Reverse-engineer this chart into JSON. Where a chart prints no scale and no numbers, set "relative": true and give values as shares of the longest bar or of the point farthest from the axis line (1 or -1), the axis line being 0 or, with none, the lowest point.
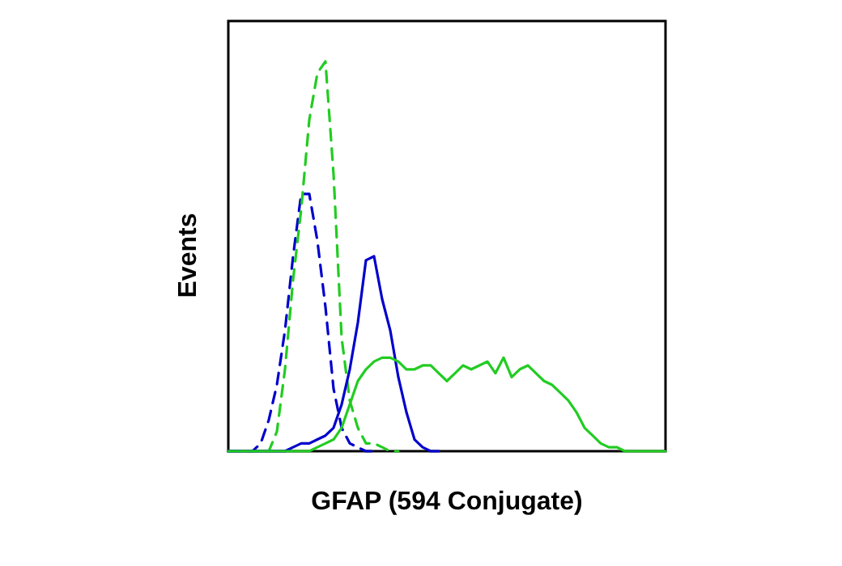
{
  "chart_data": {
    "type": "line",
    "relative": true,
    "xlabel": "GFAP (594 Conjugate)",
    "ylabel": "Events",
    "grid": false,
    "marker": "none",
    "categories": [
      null,
      null,
      null,
      null,
      null,
      null,
      null,
      null,
      null,
      null,
      null,
      null,
      null,
      null,
      null,
      null,
      null,
      null,
      null,
      null,
      null,
      null,
      null,
      null,
      null,
      null,
      null,
      null,
      null,
      null,
      null,
      null,
      null,
      null,
      null,
      null,
      null,
      null,
      null,
      null,
      null,
      null,
      null,
      null,
      null,
      null,
      null,
      null,
      null,
      null,
      null,
      null,
      null,
      null,
      null
    ],
    "series": [
      {
        "color": "#0000cc",
        "line_style": "dashed",
        "values": [
          0,
          0,
          0,
          0,
          0.02,
          0.08,
          0.17,
          0.31,
          0.5,
          0.66,
          0.66,
          0.54,
          0.37,
          0.16,
          0.06,
          0.02,
          0.01,
          0,
          0,
          null,
          null,
          null,
          null,
          null,
          null,
          null,
          null,
          null,
          null,
          null,
          null,
          null,
          null,
          null,
          null,
          null,
          null,
          null,
          null,
          null,
          null,
          null,
          null,
          null,
          null,
          null,
          null,
          null,
          null,
          null,
          null,
          null,
          null,
          null,
          null
        ]
      },
      {
        "color": "#22cc22",
        "line_style": "dashed",
        "values": [
          0,
          0,
          0,
          0,
          0,
          0,
          0.05,
          0.21,
          0.44,
          0.62,
          0.85,
          0.97,
          1,
          0.71,
          0.29,
          0.13,
          0.06,
          0.02,
          0.02,
          0.01,
          0,
          0,
          null,
          null,
          null,
          null,
          null,
          null,
          null,
          null,
          null,
          null,
          null,
          null,
          null,
          null,
          null,
          null,
          null,
          null,
          null,
          null,
          null,
          null,
          null,
          null,
          null,
          null,
          null,
          null,
          null,
          null,
          null,
          null,
          null
        ]
      },
      {
        "color": "#0000cc",
        "line_style": "solid",
        "values": [
          0,
          0,
          0,
          0,
          0,
          0,
          0,
          0,
          0.01,
          0.02,
          0.02,
          0.03,
          0.04,
          0.06,
          0.12,
          0.21,
          0.33,
          0.49,
          0.5,
          0.39,
          0.31,
          0.19,
          0.1,
          0.03,
          0.01,
          0,
          0,
          null,
          null,
          null,
          null,
          null,
          null,
          null,
          null,
          null,
          null,
          null,
          null,
          null,
          null,
          null,
          null,
          null,
          null,
          null,
          null,
          null,
          null,
          null,
          null,
          null,
          null,
          null,
          null
        ]
      },
      {
        "color": "#22cc22",
        "line_style": "solid",
        "values": [
          0,
          0,
          0,
          0,
          0,
          0,
          0,
          0,
          0,
          0,
          0,
          0.01,
          0.02,
          0.03,
          0.06,
          0.12,
          0.18,
          0.21,
          0.23,
          0.24,
          0.24,
          0.23,
          0.21,
          0.21,
          0.22,
          0.22,
          0.2,
          0.18,
          0.2,
          0.22,
          0.21,
          0.22,
          0.23,
          0.2,
          0.24,
          0.19,
          0.21,
          0.22,
          0.2,
          0.18,
          0.17,
          0.15,
          0.13,
          0.1,
          0.06,
          0.04,
          0.02,
          0.01,
          0.01,
          0,
          0,
          0,
          0,
          0,
          0
        ]
      }
    ]
  }
}
